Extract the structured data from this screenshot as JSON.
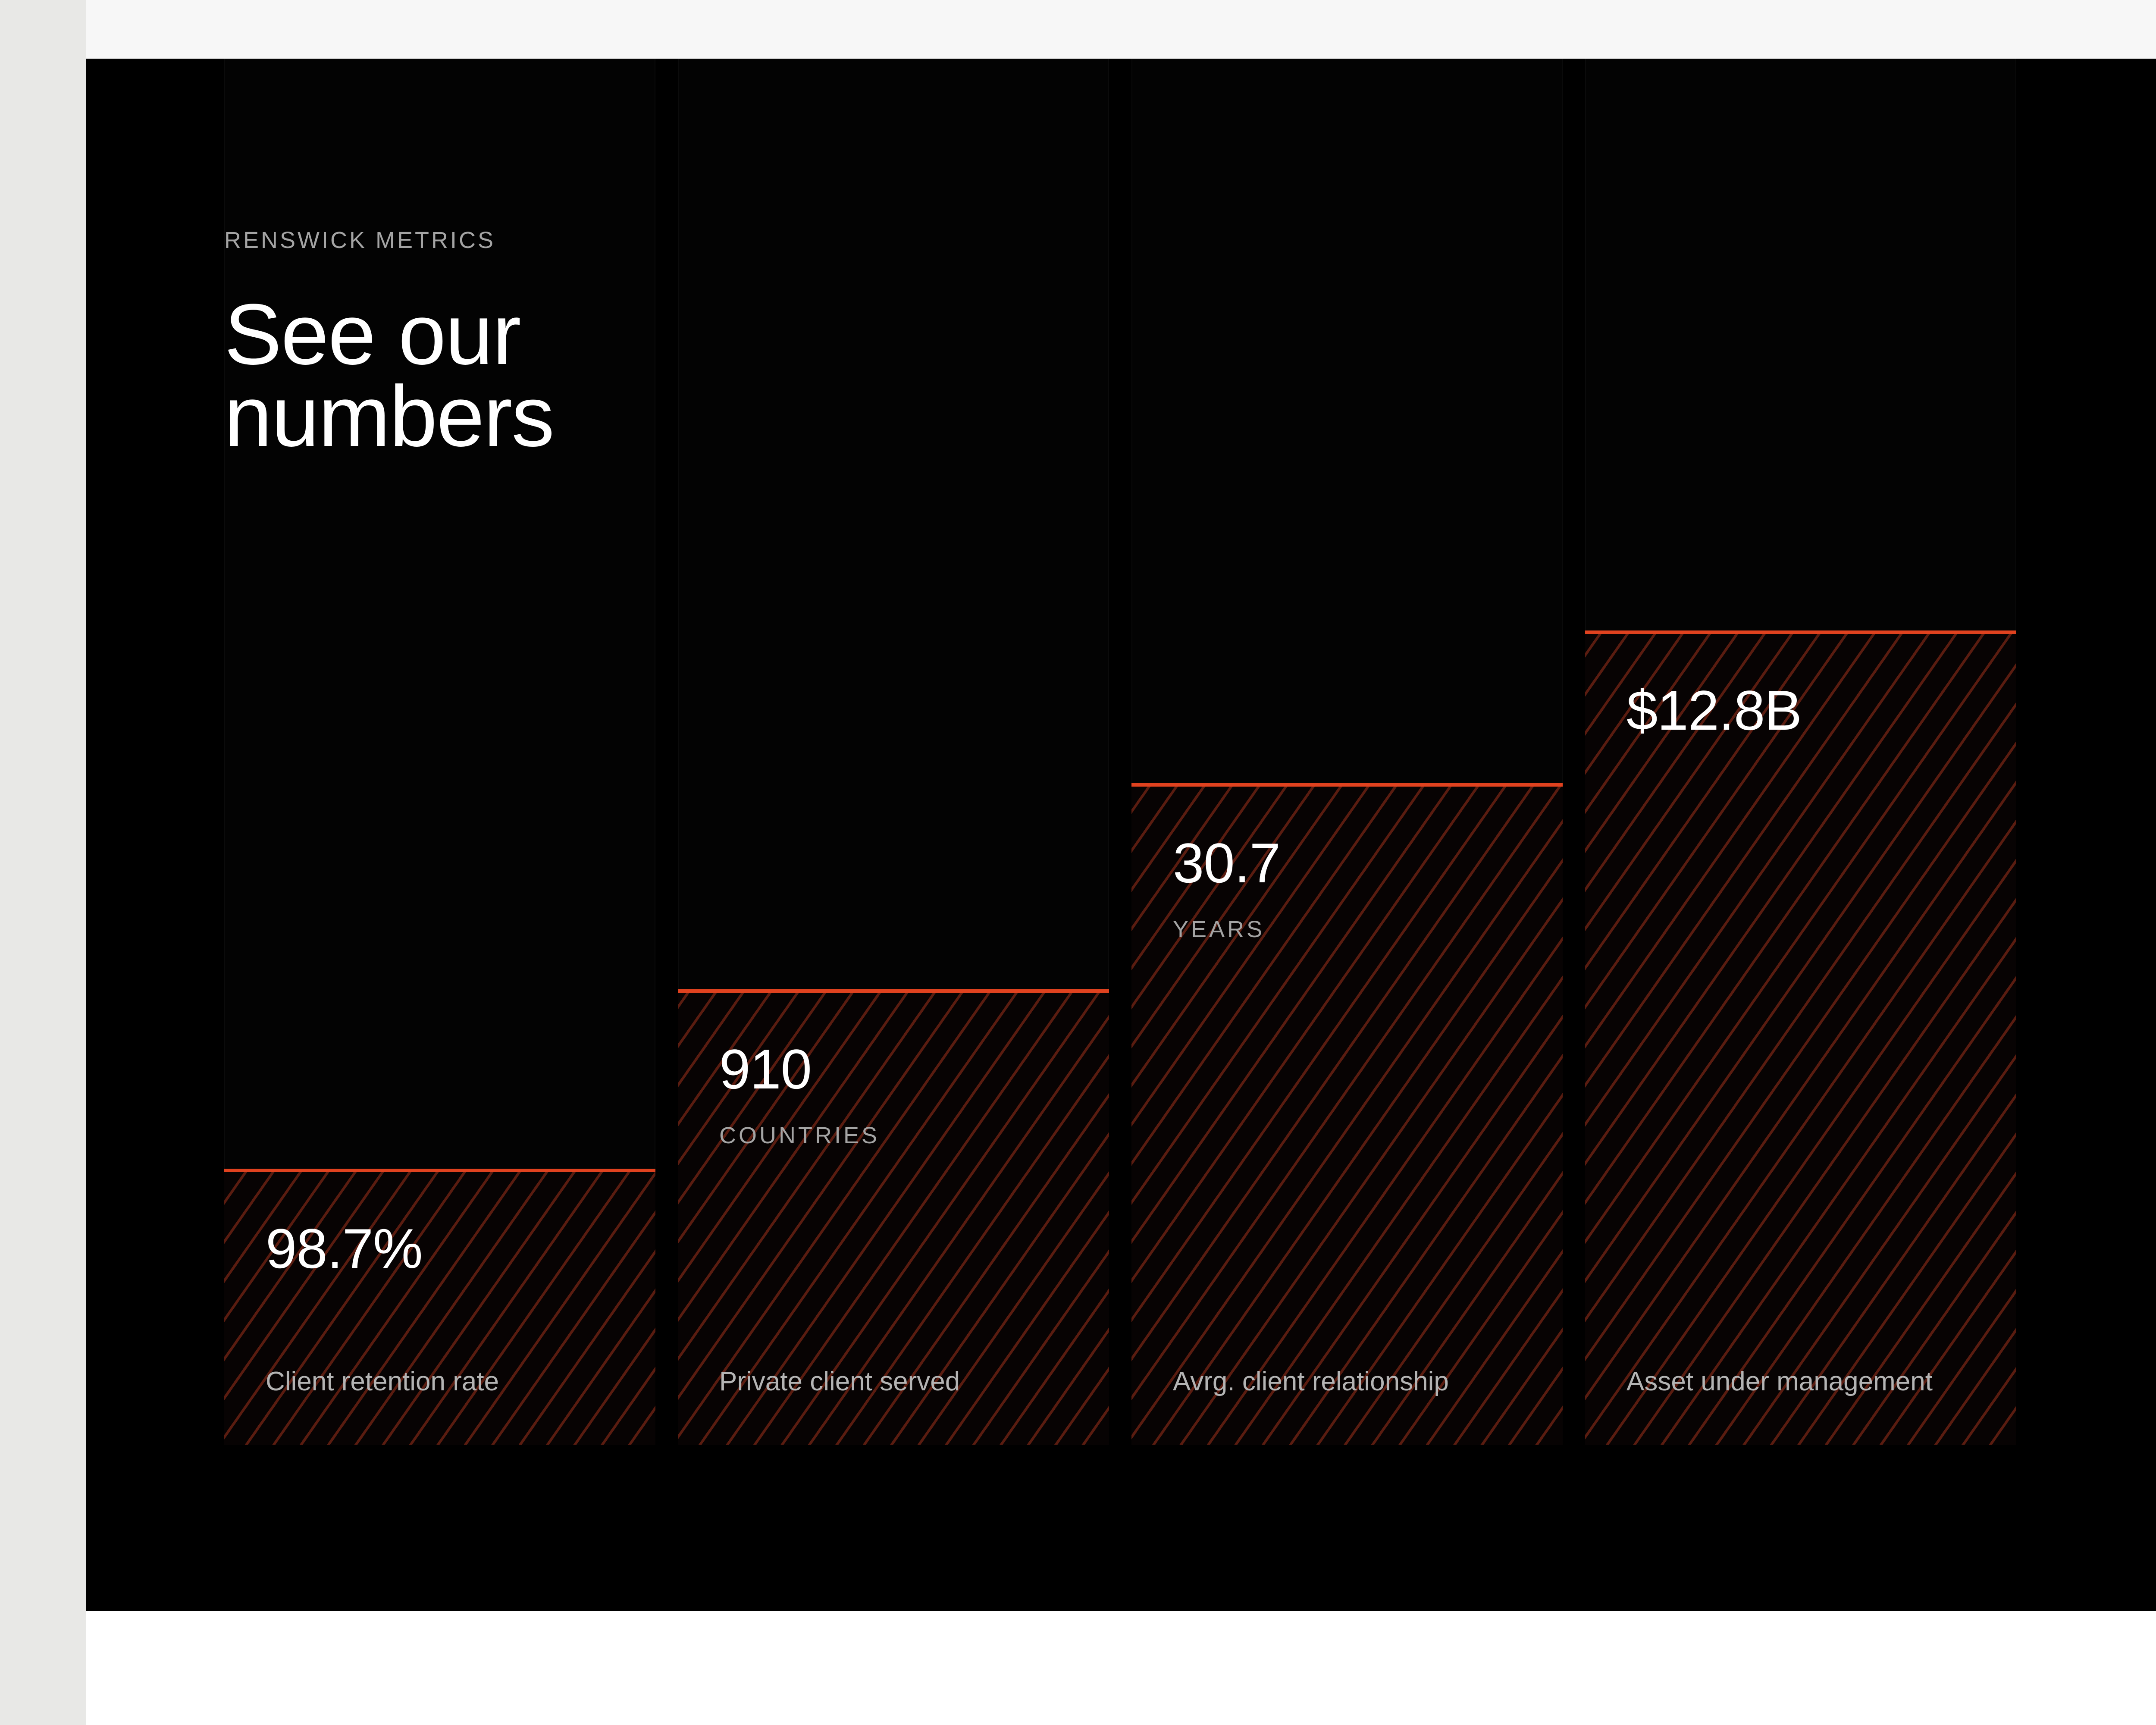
{
  "section": {
    "eyebrow": "RENSWICK METRICS",
    "title_line_1": "See our",
    "title_line_2": "numbers"
  },
  "colors": {
    "accent": "#e0421f",
    "section_background": "#000000",
    "hatch": "#5a1c10",
    "value_text": "#ffffff",
    "secondary_text": "#a4a4a4"
  },
  "metrics": [
    {
      "value": "98.7%",
      "unit": "",
      "label": "Client retention rate",
      "relative_level": 0.32
    },
    {
      "value": "910",
      "unit": "COUNTRIES",
      "label": "Private client served",
      "relative_level": 0.56
    },
    {
      "value": "30.7",
      "unit": "YEARS",
      "label": "Avrg. client relationship",
      "relative_level": 0.84
    },
    {
      "value": "$12.8B",
      "unit": "",
      "label": "Asset under management",
      "relative_level": 1.0
    }
  ]
}
